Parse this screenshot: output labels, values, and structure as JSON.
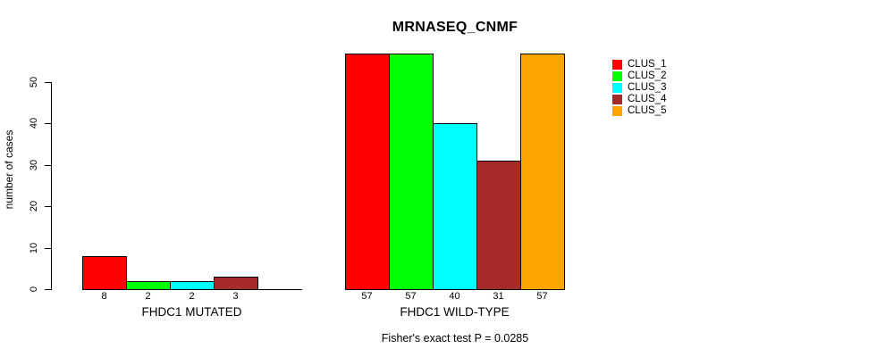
{
  "figure": {
    "background": "#ffffff",
    "axis_color": "#000000"
  },
  "chart_data": {
    "type": "bar",
    "title": "MRNASEQ_CNMF",
    "ylabel": "number of cases",
    "xlabel": "",
    "ylim": [
      0,
      57
    ],
    "yticks": [
      "0",
      "10",
      "20",
      "30",
      "40",
      "50"
    ],
    "ytick_values": [
      0,
      10,
      20,
      30,
      40,
      50
    ],
    "grid": false,
    "legend_position": "right",
    "categories": [
      "FHDC1 MUTATED",
      "FHDC1 WILD-TYPE"
    ],
    "series": [
      {
        "name": "CLUS_1",
        "color": "#ff0000",
        "values": [
          8,
          57
        ]
      },
      {
        "name": "CLUS_2",
        "color": "#00ff00",
        "values": [
          2,
          57
        ]
      },
      {
        "name": "CLUS_3",
        "color": "#00ffff",
        "values": [
          2,
          40
        ]
      },
      {
        "name": "CLUS_4",
        "color": "#a52a2a",
        "values": [
          3,
          31
        ]
      },
      {
        "name": "CLUS_5",
        "color": "#ffa500",
        "values": [
          0,
          57
        ]
      }
    ],
    "bar_labels": [
      [
        "8",
        "2",
        "2",
        "3",
        ""
      ],
      [
        "57",
        "57",
        "40",
        "31",
        "57"
      ]
    ],
    "annotation": "Fisher's exact test P = 0.0285"
  }
}
